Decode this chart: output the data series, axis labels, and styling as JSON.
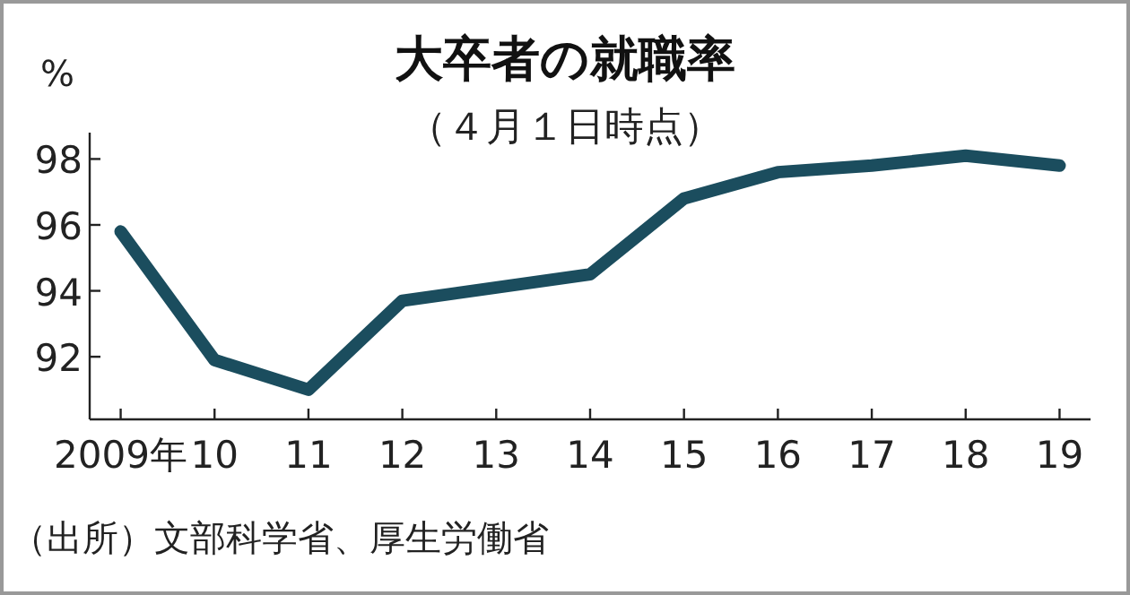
{
  "chart_data": {
    "type": "line",
    "title": "大卒者の就職率",
    "subtitle": "（４月１日時点）",
    "ylabel": "%",
    "annotations": [
      "（出所）文部科学省、厚生労働省"
    ],
    "categories": [
      "2009年",
      "10",
      "11",
      "12",
      "13",
      "14",
      "15",
      "16",
      "17",
      "18",
      "19"
    ],
    "series": [
      {
        "color": "#1b4d5e",
        "values": [
          95.8,
          91.9,
          91.0,
          93.7,
          94.1,
          94.5,
          96.8,
          97.6,
          97.8,
          98.1,
          97.8
        ]
      }
    ],
    "ylim": [
      90.1,
      98.8
    ],
    "yticks": [
      92,
      94,
      96,
      98
    ],
    "grid": false,
    "marker": "none",
    "line_style": "solid"
  }
}
